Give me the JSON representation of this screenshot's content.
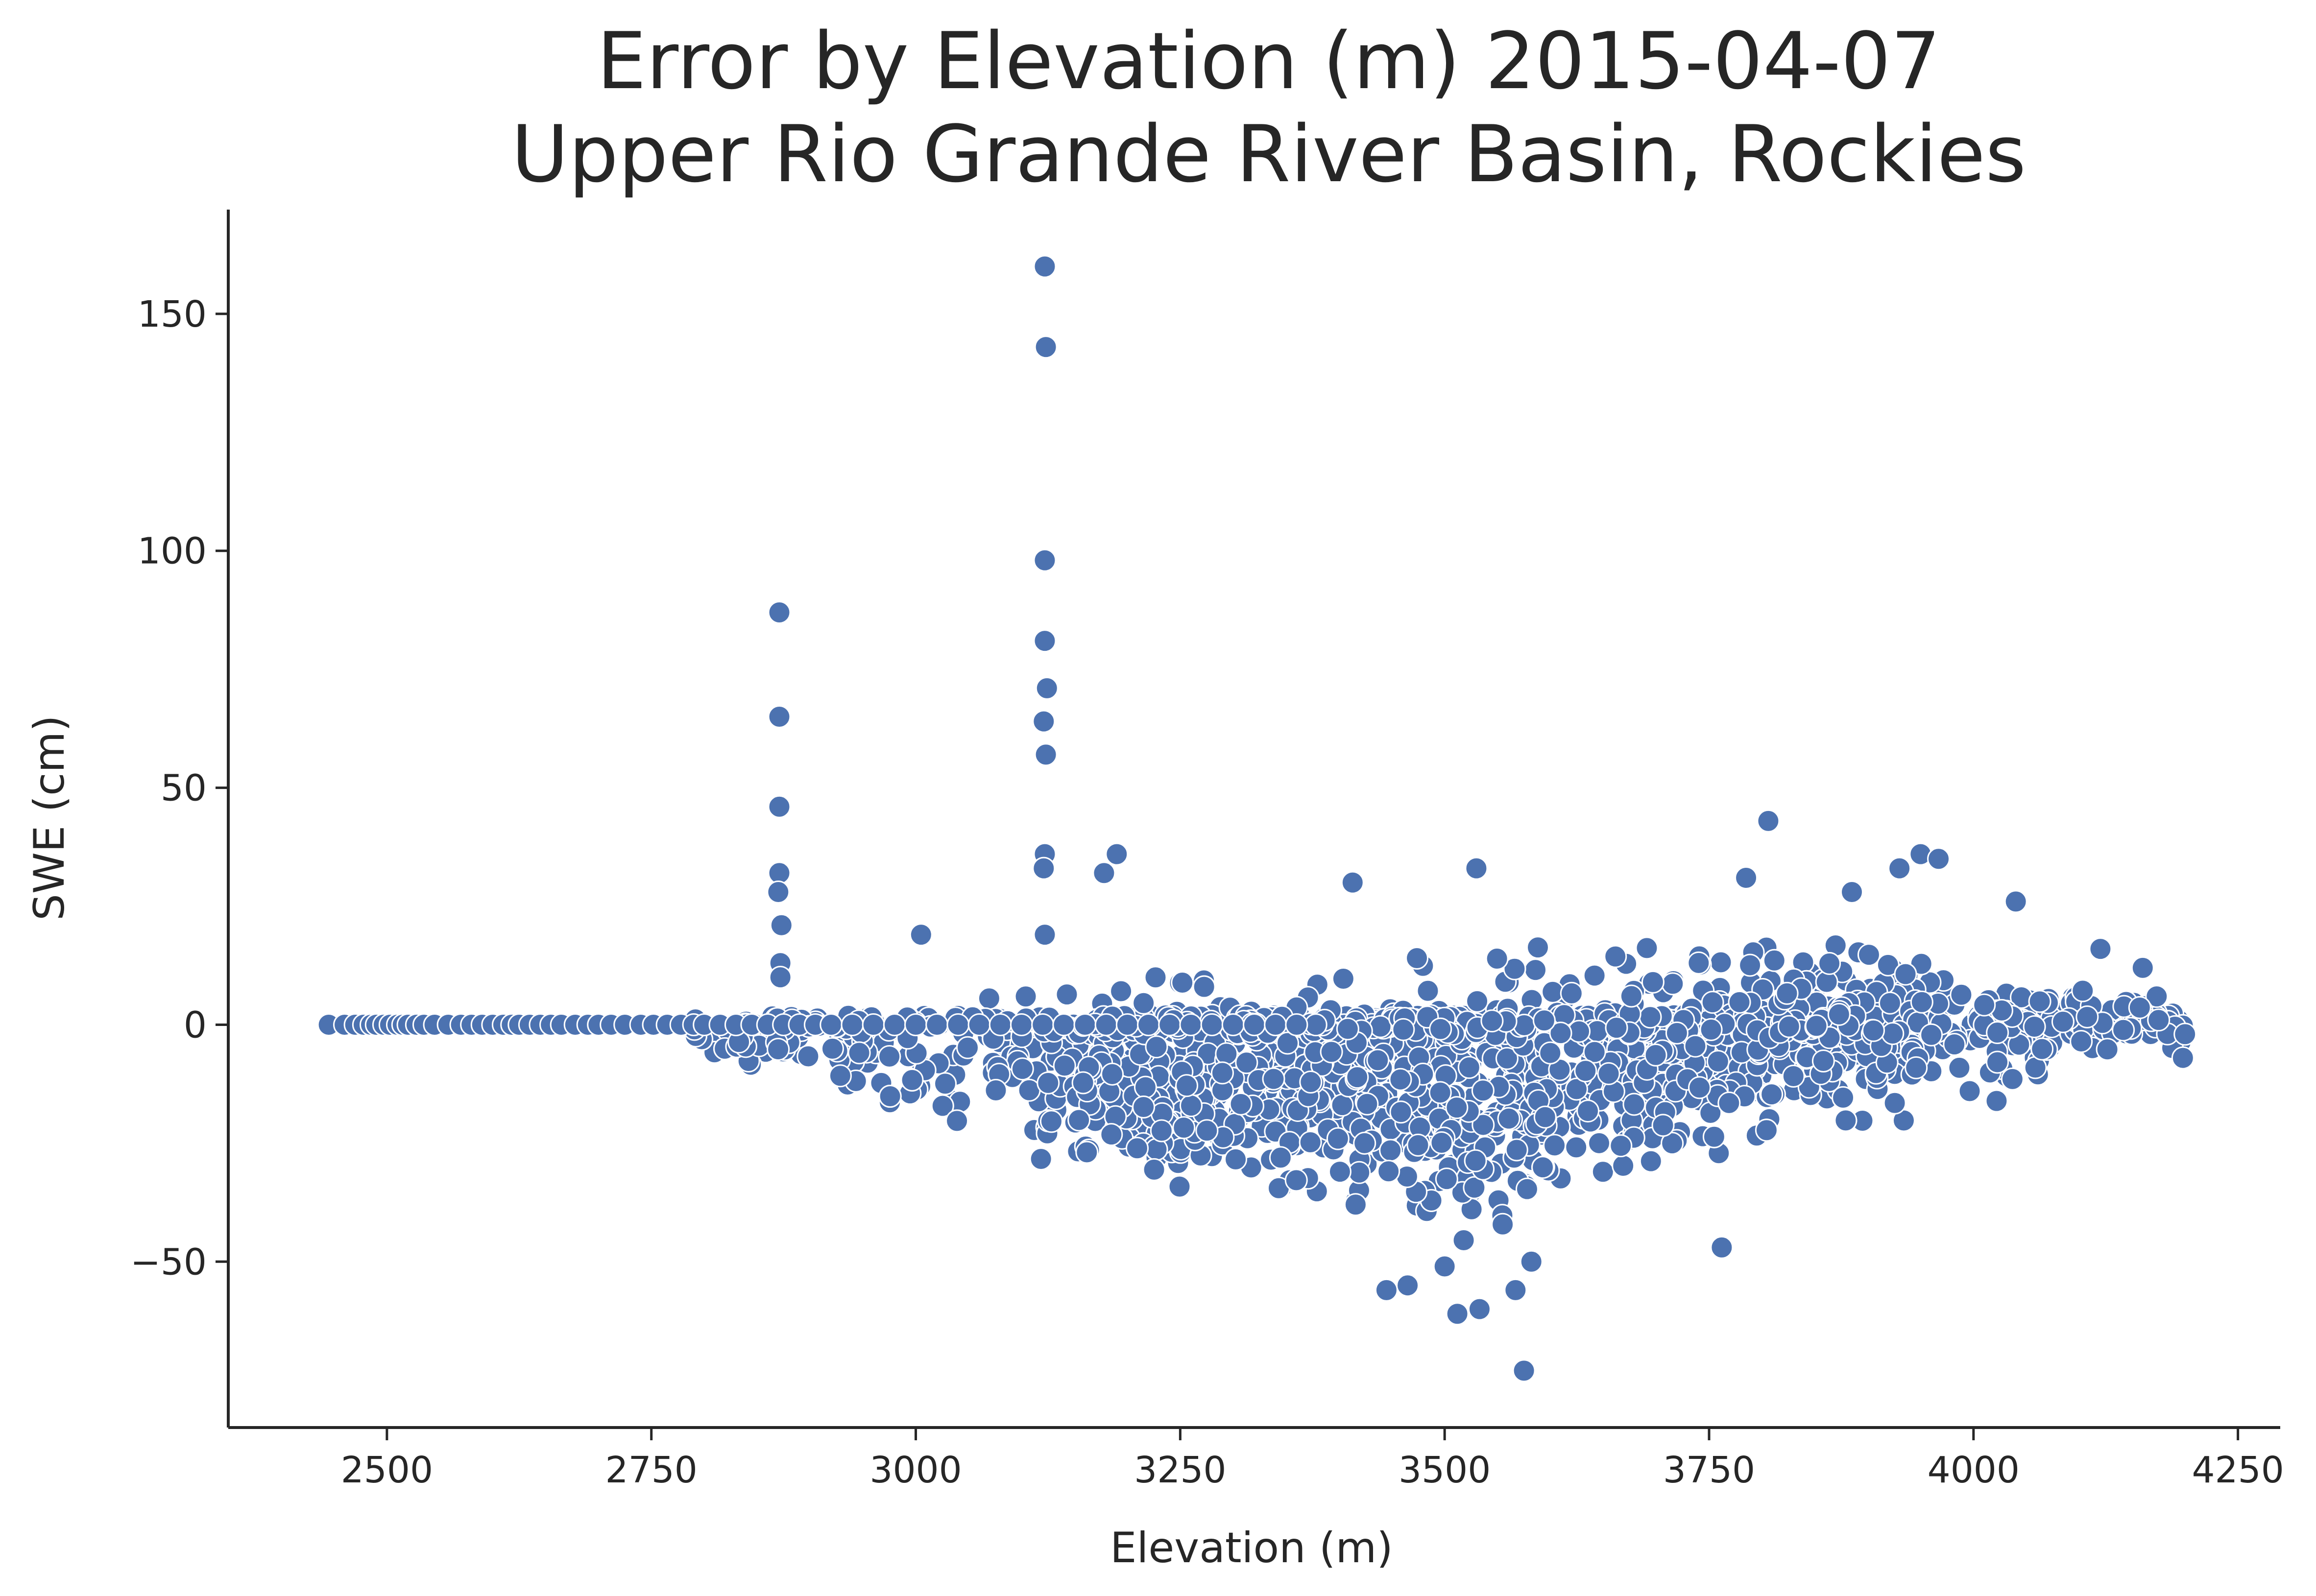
{
  "chart_data": {
    "type": "scatter",
    "title_line1": "Error by Elevation (m) 2015-04-07",
    "title_line2": "Upper Rio Grande River Basin, Rockies",
    "xlabel": "Elevation (m)",
    "ylabel": "SWE (cm)",
    "xlim": [
      2350,
      4290
    ],
    "ylim": [
      -85,
      172
    ],
    "xticks": [
      2500,
      2750,
      3000,
      3250,
      3500,
      3750,
      4000,
      4250
    ],
    "xtick_labels": [
      "2500",
      "2750",
      "3000",
      "3250",
      "3500",
      "3750",
      "4000",
      "4250"
    ],
    "yticks": [
      -50,
      0,
      50,
      100,
      150
    ],
    "ytick_labels": [
      "−50",
      "0",
      "50",
      "100",
      "150"
    ],
    "grid": false,
    "point_color": "#4c72b0",
    "cloud": {
      "x_range": [
        2790,
        4200
      ],
      "upper_envelope": [
        [
          2790,
          2
        ],
        [
          2900,
          5
        ],
        [
          3000,
          9
        ],
        [
          3200,
          13
        ],
        [
          3400,
          17
        ],
        [
          3600,
          20
        ],
        [
          3750,
          23
        ],
        [
          3900,
          24
        ],
        [
          4050,
          17
        ],
        [
          4150,
          11
        ],
        [
          4200,
          3
        ]
      ],
      "lower_envelope": [
        [
          2790,
          -8
        ],
        [
          2900,
          -14
        ],
        [
          3000,
          -24
        ],
        [
          3200,
          -36
        ],
        [
          3400,
          -44
        ],
        [
          3500,
          -50
        ],
        [
          3550,
          -51
        ],
        [
          3650,
          -38
        ],
        [
          3750,
          -31
        ],
        [
          3900,
          -26
        ],
        [
          4050,
          -18
        ],
        [
          4150,
          -7
        ],
        [
          4200,
          -6
        ]
      ]
    },
    "zero_line_x": [
      2445,
      2460,
      2470,
      2478,
      2485,
      2490,
      2497,
      2503,
      2510,
      2515,
      2520,
      2528,
      2535,
      2545,
      2558,
      2570,
      2580,
      2590,
      2600,
      2610,
      2618,
      2625,
      2635,
      2645,
      2655,
      2665,
      2678,
      2690,
      2700,
      2712,
      2725,
      2740,
      2752,
      2765,
      2778,
      2790,
      2800,
      2815,
      2830,
      2845,
      2860,
      2875,
      2890,
      2905,
      2920,
      2940,
      2960,
      2980,
      3000,
      3020,
      3040,
      3060,
      3080,
      3100,
      3120,
      3140,
      3160,
      3180,
      3200,
      3220,
      3240,
      3260,
      3280,
      3300,
      3320,
      3340,
      3360
    ],
    "highlighted_points": [
      {
        "x": 3122,
        "y": 160
      },
      {
        "x": 3123,
        "y": 143
      },
      {
        "x": 3122,
        "y": 98
      },
      {
        "x": 3122,
        "y": 81
      },
      {
        "x": 3124,
        "y": 71
      },
      {
        "x": 3121,
        "y": 64
      },
      {
        "x": 3123,
        "y": 57
      },
      {
        "x": 3122,
        "y": 36
      },
      {
        "x": 3121,
        "y": 33
      },
      {
        "x": 3122,
        "y": 19
      },
      {
        "x": 2871,
        "y": 87
      },
      {
        "x": 2871,
        "y": 65
      },
      {
        "x": 2871,
        "y": 46
      },
      {
        "x": 2871,
        "y": 32
      },
      {
        "x": 2870,
        "y": 28
      },
      {
        "x": 2873,
        "y": 21
      },
      {
        "x": 2872,
        "y": 13
      },
      {
        "x": 2872,
        "y": 10
      },
      {
        "x": 3178,
        "y": 32
      },
      {
        "x": 3190,
        "y": 36
      },
      {
        "x": 3005,
        "y": 19
      },
      {
        "x": 3806,
        "y": 43
      },
      {
        "x": 3950,
        "y": 36
      },
      {
        "x": 3967,
        "y": 35
      },
      {
        "x": 3785,
        "y": 31
      },
      {
        "x": 3930,
        "y": 33
      },
      {
        "x": 3413,
        "y": 30
      },
      {
        "x": 3530,
        "y": 33
      },
      {
        "x": 4040,
        "y": 26
      },
      {
        "x": 3885,
        "y": 28
      },
      {
        "x": 3575,
        "y": -73
      },
      {
        "x": 3512,
        "y": -61
      },
      {
        "x": 3533,
        "y": -60
      },
      {
        "x": 3567,
        "y": -56
      },
      {
        "x": 3445,
        "y": -56
      },
      {
        "x": 3465,
        "y": -55
      },
      {
        "x": 3762,
        "y": -47
      },
      {
        "x": 3500,
        "y": -51
      },
      {
        "x": 3582,
        "y": -50
      },
      {
        "x": 4200,
        "y": -2
      },
      {
        "x": 4198,
        "y": -7
      },
      {
        "x": 4175,
        "y": 1
      },
      {
        "x": 4160,
        "y": 12
      },
      {
        "x": 4120,
        "y": 16
      }
    ]
  }
}
